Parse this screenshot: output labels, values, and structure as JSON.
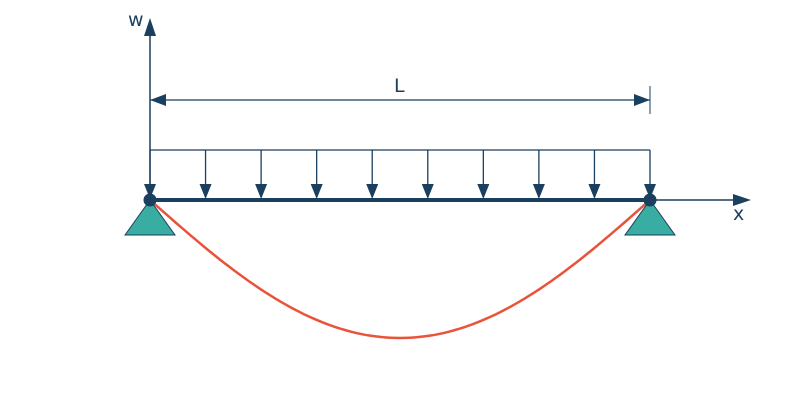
{
  "labels": {
    "w_axis": "w",
    "x_axis": "x",
    "length": "L"
  },
  "load_arrow_count": 10,
  "colors": {
    "structure": "#1a3f5f",
    "support": "#3aada2",
    "deflection": "#e8533a"
  }
}
